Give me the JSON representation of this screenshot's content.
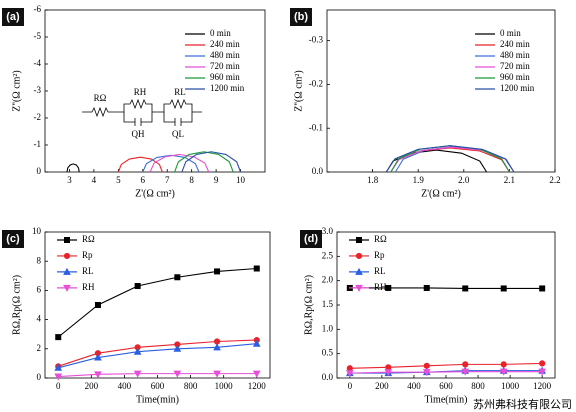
{
  "chart_data": [
    {
      "type": "line",
      "panel_label": "(a)",
      "x_label": "Z'(Ω cm²)",
      "y_label": "Z''(Ω cm²)",
      "xlim": [
        2,
        11
      ],
      "xticks": [
        3,
        4,
        5,
        6,
        7,
        8,
        9,
        10
      ],
      "ylim": [
        0,
        -6
      ],
      "yticks": [
        0,
        -1,
        -2,
        -3,
        -4,
        -5,
        -6
      ],
      "legend": "upper right",
      "annotations": [
        "RΩ",
        "RH",
        "RL",
        "QH",
        "QL"
      ],
      "series": [
        {
          "name": "0 min",
          "color": "#000000",
          "marker": "none",
          "x": [
            2.9,
            2.93,
            3.03,
            3.15,
            3.28,
            3.37,
            3.4
          ],
          "values": [
            0,
            -0.15,
            -0.26,
            -0.3,
            -0.26,
            -0.15,
            0
          ]
        },
        {
          "name": "240 min",
          "color": "#e8232a",
          "marker": "none",
          "x": [
            5.0,
            5.12,
            5.45,
            5.9,
            6.35,
            6.68,
            6.8
          ],
          "values": [
            0,
            -0.28,
            -0.48,
            -0.55,
            -0.48,
            -0.28,
            0
          ]
        },
        {
          "name": "480 min",
          "color": "#3a6fd8",
          "marker": "none",
          "x": [
            6.0,
            6.15,
            6.58,
            7.15,
            7.73,
            8.15,
            8.3
          ],
          "values": [
            0,
            -0.31,
            -0.54,
            -0.62,
            -0.54,
            -0.31,
            0
          ]
        },
        {
          "name": "720 min",
          "color": "#e64fd6",
          "marker": "none",
          "x": [
            6.3,
            6.46,
            6.9,
            7.5,
            8.1,
            8.54,
            8.7
          ],
          "values": [
            0,
            -0.33,
            -0.56,
            -0.65,
            -0.56,
            -0.33,
            0
          ]
        },
        {
          "name": "960 min",
          "color": "#1a9a3a",
          "marker": "none",
          "x": [
            7.3,
            7.46,
            7.9,
            8.5,
            9.1,
            9.54,
            9.7
          ],
          "values": [
            0,
            -0.38,
            -0.65,
            -0.75,
            -0.65,
            -0.38,
            0
          ]
        },
        {
          "name": "1200 min",
          "color": "#2a4fa8",
          "marker": "none",
          "x": [
            7.6,
            7.76,
            8.2,
            8.8,
            9.4,
            9.84,
            10.0
          ],
          "values": [
            0,
            -0.38,
            -0.65,
            -0.75,
            -0.65,
            -0.38,
            0
          ]
        }
      ]
    },
    {
      "type": "line",
      "panel_label": "(b)",
      "x_label": "Z'(Ω cm²)",
      "y_label": "Z''(Ω cm²)",
      "xlim": [
        1.7,
        2.2
      ],
      "xticks": [
        1.8,
        1.9,
        {
          "value": 2,
          "label": "2.0"
        },
        2.1,
        2.2
      ],
      "ylim": [
        0,
        -0.37
      ],
      "yticks": [
        {
          "value": 0,
          "label": "0.0"
        },
        -0.1,
        -0.2,
        -0.3
      ],
      "legend": "upper right",
      "series": [
        {
          "name": "0 min",
          "color": "#000000",
          "marker": "none",
          "x": [
            1.83,
            1.845,
            1.885,
            1.94,
            1.995,
            2.035,
            2.05
          ],
          "values": [
            0,
            -0.025,
            -0.043,
            -0.05,
            -0.043,
            -0.025,
            0
          ]
        },
        {
          "name": "240 min",
          "color": "#e8232a",
          "marker": "none",
          "x": [
            1.84,
            1.857,
            1.905,
            1.97,
            2.035,
            2.083,
            2.1
          ],
          "values": [
            0,
            -0.028,
            -0.048,
            -0.055,
            -0.048,
            -0.028,
            0
          ]
        },
        {
          "name": "480 min",
          "color": "#3a6fd8",
          "marker": "none",
          "x": [
            1.85,
            1.867,
            1.915,
            1.98,
            2.045,
            2.093,
            2.11
          ],
          "values": [
            0,
            -0.029,
            -0.05,
            -0.058,
            -0.05,
            -0.029,
            0
          ]
        },
        {
          "name": "720 min",
          "color": "#e64fd6",
          "marker": "none",
          "x": [
            1.84,
            1.858,
            1.908,
            1.975,
            2.043,
            2.092,
            2.11
          ],
          "values": [
            0,
            -0.029,
            -0.049,
            -0.057,
            -0.049,
            -0.029,
            0
          ]
        },
        {
          "name": "960 min",
          "color": "#1a9a3a",
          "marker": "none",
          "x": [
            1.84,
            1.857,
            1.905,
            1.97,
            2.035,
            2.083,
            2.1
          ],
          "values": [
            0,
            -0.03,
            -0.052,
            -0.06,
            -0.052,
            -0.03,
            0
          ]
        },
        {
          "name": "1200 min",
          "color": "#2a4fa8",
          "marker": "none",
          "x": [
            1.83,
            1.849,
            1.9,
            1.97,
            2.04,
            2.091,
            2.11
          ],
          "values": [
            0,
            -0.03,
            -0.052,
            -0.06,
            -0.052,
            -0.03,
            0
          ]
        }
      ]
    },
    {
      "type": "line",
      "panel_label": "(c)",
      "x_label": "Time(min)",
      "y_label": "RΩ,Rp(Ω cm²)",
      "xlim": [
        -80,
        1280
      ],
      "xticks": [
        0,
        200,
        400,
        600,
        800,
        1000,
        1200
      ],
      "ylim": [
        0,
        10
      ],
      "yticks": [
        0,
        2,
        4,
        6,
        8,
        10
      ],
      "legend": "upper left",
      "x": [
        0,
        240,
        480,
        720,
        960,
        1200
      ],
      "series": [
        {
          "name": "RΩ",
          "color": "#000000",
          "marker": "square",
          "values": [
            2.8,
            5.0,
            6.3,
            6.9,
            7.3,
            7.5
          ]
        },
        {
          "name": "Rp",
          "color": "#e8232a",
          "marker": "circle",
          "values": [
            0.8,
            1.7,
            2.1,
            2.3,
            2.5,
            2.6
          ]
        },
        {
          "name": "RL",
          "color": "#2a5fe0",
          "marker": "triangle-up",
          "values": [
            0.7,
            1.4,
            1.8,
            2.0,
            2.1,
            2.35
          ]
        },
        {
          "name": "RH",
          "color": "#e64fd6",
          "marker": "triangle-down",
          "values": [
            0.1,
            0.25,
            0.3,
            0.3,
            0.3,
            0.3
          ]
        }
      ]
    },
    {
      "type": "line",
      "panel_label": "(d)",
      "x_label": "Time(min)",
      "y_label": "RΩ,Rp(Ω cm²)",
      "xlim": [
        -80,
        1280
      ],
      "xticks": [
        0,
        200,
        400,
        600,
        800,
        1000,
        1200
      ],
      "ylim": [
        0,
        3
      ],
      "yticks": [
        {
          "value": 0,
          "label": "0.0"
        },
        0.5,
        {
          "value": 1,
          "label": "1.0"
        },
        1.5,
        {
          "value": 2,
          "label": "2.0"
        },
        2.5,
        {
          "value": 3,
          "label": "3.0"
        }
      ],
      "legend": "upper left",
      "x": [
        0,
        240,
        480,
        720,
        960,
        1200
      ],
      "series": [
        {
          "name": "RΩ",
          "color": "#000000",
          "marker": "square",
          "values": [
            1.85,
            1.85,
            1.85,
            1.84,
            1.84,
            1.84
          ]
        },
        {
          "name": "Rp",
          "color": "#e8232a",
          "marker": "circle",
          "values": [
            0.2,
            0.22,
            0.25,
            0.28,
            0.28,
            0.3
          ]
        },
        {
          "name": "RL",
          "color": "#2a5fe0",
          "marker": "triangle-up",
          "values": [
            0.1,
            0.1,
            0.12,
            0.15,
            0.15,
            0.15
          ]
        },
        {
          "name": "RH",
          "color": "#e64fd6",
          "marker": "triangle-down",
          "values": [
            0.1,
            0.12,
            0.12,
            0.13,
            0.13,
            0.13
          ]
        }
      ]
    }
  ],
  "watermark": "苏州弗科技有限公司"
}
